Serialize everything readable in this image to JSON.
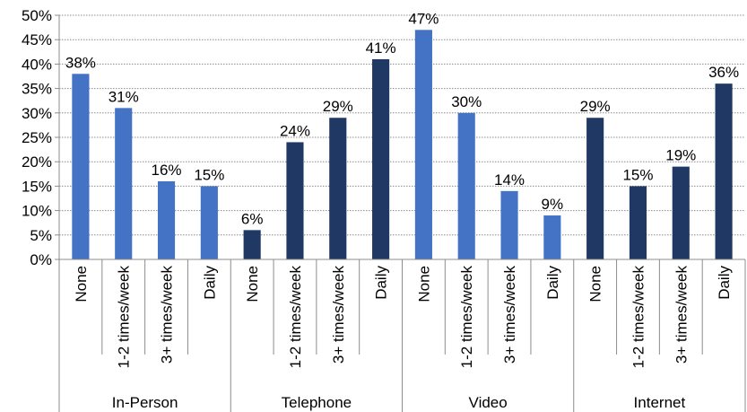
{
  "chart_data": {
    "type": "bar",
    "y_axis": {
      "min": 0,
      "max": 50,
      "step": 5,
      "tick_labels": [
        "0%",
        "5%",
        "10%",
        "15%",
        "20%",
        "25%",
        "30%",
        "35%",
        "40%",
        "45%",
        "50%"
      ],
      "grid": true,
      "grid_style": "dotted"
    },
    "groups": [
      {
        "name": "In-Person",
        "categories": [
          "None",
          "1-2 times/week",
          "3+ times/week",
          "Daily"
        ],
        "values": [
          38,
          31,
          16,
          15
        ],
        "labels": [
          "38%",
          "31%",
          "16%",
          "15%"
        ],
        "color": "#4472C4"
      },
      {
        "name": "Telephone",
        "categories": [
          "None",
          "1-2 times/week",
          "3+ times/week",
          "Daily"
        ],
        "values": [
          6,
          24,
          29,
          41
        ],
        "labels": [
          "6%",
          "24%",
          "29%",
          "41%"
        ],
        "color": "#1F3864"
      },
      {
        "name": "Video",
        "categories": [
          "None",
          "1-2 times/week",
          "3+ times/week",
          "Daily"
        ],
        "values": [
          47,
          30,
          14,
          9
        ],
        "labels": [
          "47%",
          "30%",
          "14%",
          "9%"
        ],
        "color": "#4472C4"
      },
      {
        "name": "Internet",
        "categories": [
          "None",
          "1-2 times/week",
          "3+ times/week",
          "Daily"
        ],
        "values": [
          29,
          15,
          19,
          36
        ],
        "labels": [
          "29%",
          "15%",
          "19%",
          "36%"
        ],
        "color": "#1F3864"
      }
    ]
  }
}
